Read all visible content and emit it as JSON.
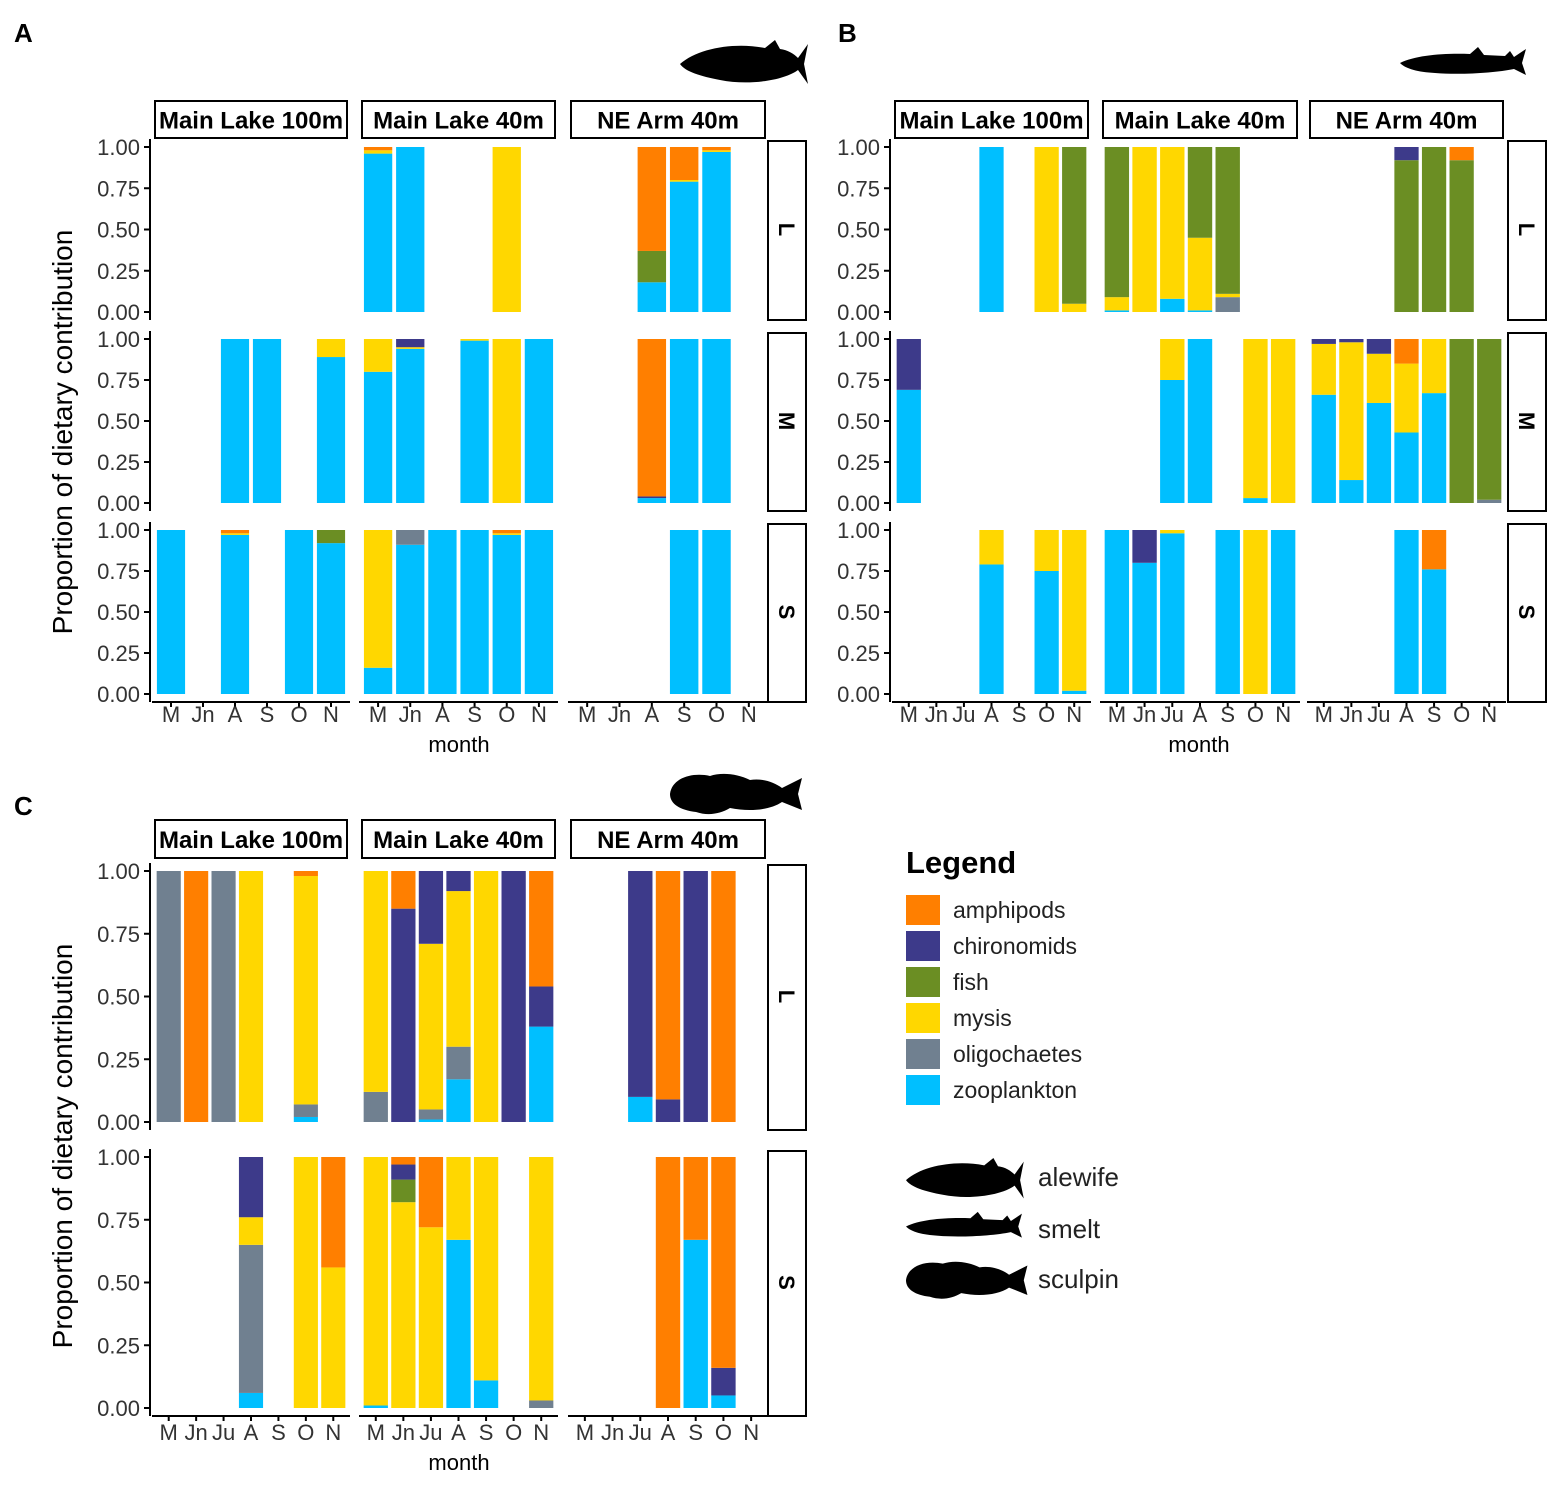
{
  "chart_data": {
    "type": "bar",
    "stacked": true,
    "y_ticks": [
      "0.00",
      "0.25",
      "0.50",
      "0.75",
      "1.00"
    ],
    "ylim": [
      0,
      1
    ],
    "ylabel": "Proportion of dietary contribution",
    "xlabel": "month",
    "categories": [
      "amphipods",
      "chironomids",
      "fish",
      "mysis",
      "oligochaetes",
      "zooplankton"
    ],
    "category_colors": {
      "amphipods": "#FF7F00",
      "chironomids": "#3D3A8A",
      "fish": "#6B8E23",
      "mysis": "#FFD700",
      "oligochaetes": "#708090",
      "zooplankton": "#00BFFF"
    },
    "stack_order_bottom_to_top": [
      "zooplankton",
      "oligochaetes",
      "mysis",
      "fish",
      "chironomids",
      "amphipods"
    ],
    "legend": {
      "title": "Legend",
      "items": [
        "amphipods",
        "chironomids",
        "fish",
        "mysis",
        "oligochaetes",
        "zooplankton"
      ],
      "species": [
        "alewife",
        "smelt",
        "sculpin"
      ]
    },
    "panels": [
      {
        "label": "A",
        "species": "alewife",
        "sites": [
          "Main Lake 100m",
          "Main Lake 40m",
          "NE Arm 40m"
        ],
        "site_months": [
          [
            "M",
            "Jn",
            "A",
            "S",
            "O",
            "N"
          ],
          [
            "M",
            "Jn",
            "A",
            "S",
            "O",
            "N"
          ],
          [
            "M",
            "Jn",
            "A",
            "S",
            "O",
            "N"
          ]
        ],
        "sizes": [
          "L",
          "M",
          "S"
        ],
        "bars": [
          [
            {},
            {
              "M": {
                "zooplankton": 0.96,
                "mysis": 0.02,
                "amphipods": 0.02
              },
              "Jn": {
                "zooplankton": 1.0
              },
              "O": {
                "mysis": 1.0
              }
            },
            {
              "A": {
                "zooplankton": 0.18,
                "fish": 0.19,
                "amphipods": 0.63
              },
              "S": {
                "zooplankton": 0.79,
                "mysis": 0.01,
                "amphipods": 0.2
              },
              "O": {
                "zooplankton": 0.97,
                "mysis": 0.01,
                "amphipods": 0.02
              }
            }
          ],
          [
            {
              "A": {
                "zooplankton": 1.0
              },
              "S": {
                "zooplankton": 1.0
              },
              "N": {
                "zooplankton": 0.89,
                "mysis": 0.11
              }
            },
            {
              "M": {
                "zooplankton": 0.8,
                "mysis": 0.2
              },
              "Jn": {
                "zooplankton": 0.94,
                "mysis": 0.01,
                "chironomids": 0.05
              },
              "S": {
                "zooplankton": 0.99,
                "mysis": 0.01
              },
              "O": {
                "mysis": 1.0
              },
              "N": {
                "zooplankton": 1.0
              }
            },
            {
              "A": {
                "zooplankton": 0.03,
                "chironomids": 0.01,
                "amphipods": 0.96
              },
              "S": {
                "zooplankton": 1.0
              },
              "O": {
                "zooplankton": 1.0
              }
            }
          ],
          [
            {
              "M": {
                "zooplankton": 1.0
              },
              "A": {
                "zooplankton": 0.97,
                "mysis": 0.01,
                "amphipods": 0.02
              },
              "O": {
                "zooplankton": 1.0
              },
              "N": {
                "zooplankton": 0.92,
                "fish": 0.08
              }
            },
            {
              "M": {
                "zooplankton": 0.16,
                "mysis": 0.84
              },
              "Jn": {
                "zooplankton": 0.91,
                "oligochaetes": 0.09
              },
              "A": {
                "zooplankton": 1.0
              },
              "S": {
                "zooplankton": 1.0
              },
              "O": {
                "zooplankton": 0.97,
                "mysis": 0.01,
                "amphipods": 0.02
              },
              "N": {
                "zooplankton": 1.0
              }
            },
            {
              "S": {
                "zooplankton": 1.0
              },
              "O": {
                "zooplankton": 1.0
              }
            }
          ]
        ]
      },
      {
        "label": "B",
        "species": "smelt",
        "sites": [
          "Main Lake 100m",
          "Main Lake 40m",
          "NE Arm 40m"
        ],
        "site_months": [
          [
            "M",
            "Jn",
            "Ju",
            "A",
            "S",
            "O",
            "N"
          ],
          [
            "M",
            "Jn",
            "Ju",
            "A",
            "S",
            "O",
            "N"
          ],
          [
            "M",
            "Jn",
            "Ju",
            "A",
            "S",
            "O",
            "N"
          ]
        ],
        "sizes": [
          "L",
          "M",
          "S"
        ],
        "bars": [
          [
            {
              "A": {
                "zooplankton": 1.0
              },
              "O": {
                "mysis": 1.0
              },
              "N": {
                "mysis": 0.05,
                "fish": 0.95
              }
            },
            {
              "M": {
                "zooplankton": 0.01,
                "mysis": 0.08,
                "fish": 0.91
              },
              "Jn": {
                "mysis": 1.0
              },
              "Ju": {
                "zooplankton": 0.08,
                "mysis": 0.92
              },
              "A": {
                "zooplankton": 0.01,
                "mysis": 0.44,
                "fish": 0.55
              },
              "S": {
                "oligochaetes": 0.09,
                "mysis": 0.02,
                "fish": 0.89
              }
            },
            {
              "A": {
                "fish": 0.92,
                "chironomids": 0.08
              },
              "S": {
                "fish": 1.0
              },
              "O": {
                "fish": 0.92,
                "amphipods": 0.08
              }
            }
          ],
          [
            {
              "M": {
                "zooplankton": 0.69,
                "chironomids": 0.31
              }
            },
            {
              "Ju": {
                "zooplankton": 0.75,
                "mysis": 0.25
              },
              "A": {
                "zooplankton": 1.0
              },
              "O": {
                "zooplankton": 0.03,
                "mysis": 0.97
              },
              "N": {
                "mysis": 1.0
              }
            },
            {
              "M": {
                "zooplankton": 0.66,
                "mysis": 0.31,
                "chironomids": 0.03
              },
              "Jn": {
                "zooplankton": 0.14,
                "mysis": 0.84,
                "chironomids": 0.02
              },
              "Ju": {
                "zooplankton": 0.61,
                "mysis": 0.3,
                "chironomids": 0.09
              },
              "A": {
                "zooplankton": 0.43,
                "mysis": 0.42,
                "amphipods": 0.15
              },
              "S": {
                "zooplankton": 0.67,
                "mysis": 0.33
              },
              "O": {
                "fish": 1.0
              },
              "N": {
                "oligochaetes": 0.02,
                "fish": 0.98
              }
            }
          ],
          [
            {
              "A": {
                "zooplankton": 0.79,
                "mysis": 0.21
              },
              "O": {
                "zooplankton": 0.75,
                "mysis": 0.25
              },
              "N": {
                "zooplankton": 0.02,
                "mysis": 0.98
              }
            },
            {
              "M": {
                "zooplankton": 1.0
              },
              "Jn": {
                "zooplankton": 0.8,
                "chironomids": 0.2
              },
              "Ju": {
                "zooplankton": 0.98,
                "mysis": 0.02
              },
              "S": {
                "zooplankton": 1.0
              },
              "O": {
                "mysis": 1.0
              },
              "N": {
                "zooplankton": 1.0
              }
            },
            {
              "A": {
                "zooplankton": 1.0
              },
              "S": {
                "zooplankton": 0.76,
                "amphipods": 0.24
              }
            }
          ]
        ]
      },
      {
        "label": "C",
        "species": "sculpin",
        "sites": [
          "Main Lake 100m",
          "Main Lake 40m",
          "NE Arm 40m"
        ],
        "site_months": [
          [
            "M",
            "Jn",
            "Ju",
            "A",
            "S",
            "O",
            "N"
          ],
          [
            "M",
            "Jn",
            "Ju",
            "A",
            "S",
            "O",
            "N"
          ],
          [
            "M",
            "Jn",
            "Ju",
            "A",
            "S",
            "O",
            "N"
          ]
        ],
        "sizes": [
          "L",
          "S"
        ],
        "bars": [
          [
            {
              "M": {
                "oligochaetes": 1.0
              },
              "Jn": {
                "amphipods": 1.0
              },
              "Ju": {
                "oligochaetes": 1.0
              },
              "A": {
                "mysis": 1.0
              },
              "O": {
                "zooplankton": 0.02,
                "oligochaetes": 0.05,
                "mysis": 0.91,
                "amphipods": 0.02
              }
            },
            {
              "M": {
                "oligochaetes": 0.12,
                "mysis": 0.88
              },
              "Jn": {
                "chironomids": 0.85,
                "amphipods": 0.15
              },
              "Ju": {
                "zooplankton": 0.01,
                "oligochaetes": 0.04,
                "mysis": 0.66,
                "chironomids": 0.29
              },
              "A": {
                "zooplankton": 0.17,
                "oligochaetes": 0.13,
                "mysis": 0.62,
                "chironomids": 0.08
              },
              "S": {
                "mysis": 1.0
              },
              "O": {
                "chironomids": 1.0
              },
              "N": {
                "zooplankton": 0.38,
                "chironomids": 0.16,
                "amphipods": 0.46
              }
            },
            {
              "Ju": {
                "zooplankton": 0.1,
                "chironomids": 0.9
              },
              "A": {
                "chironomids": 0.09,
                "amphipods": 0.91
              },
              "S": {
                "chironomids": 1.0
              },
              "O": {
                "amphipods": 1.0
              }
            }
          ],
          [
            {
              "A": {
                "zooplankton": 0.06,
                "oligochaetes": 0.59,
                "mysis": 0.11,
                "chironomids": 0.24
              },
              "O": {
                "mysis": 1.0
              },
              "N": {
                "mysis": 0.56,
                "amphipods": 0.44
              }
            },
            {
              "M": {
                "zooplankton": 0.01,
                "mysis": 0.99
              },
              "Jn": {
                "mysis": 0.82,
                "fish": 0.09,
                "chironomids": 0.06,
                "amphipods": 0.03
              },
              "Ju": {
                "mysis": 0.72,
                "amphipods": 0.28
              },
              "A": {
                "zooplankton": 0.67,
                "mysis": 0.33
              },
              "S": {
                "zooplankton": 0.11,
                "mysis": 0.89
              },
              "N": {
                "oligochaetes": 0.03,
                "mysis": 0.97
              }
            },
            {
              "A": {
                "amphipods": 1.0
              },
              "S": {
                "zooplankton": 0.67,
                "amphipods": 0.33
              },
              "O": {
                "zooplankton": 0.05,
                "chironomids": 0.11,
                "amphipods": 0.84
              }
            }
          ]
        ]
      }
    ]
  }
}
